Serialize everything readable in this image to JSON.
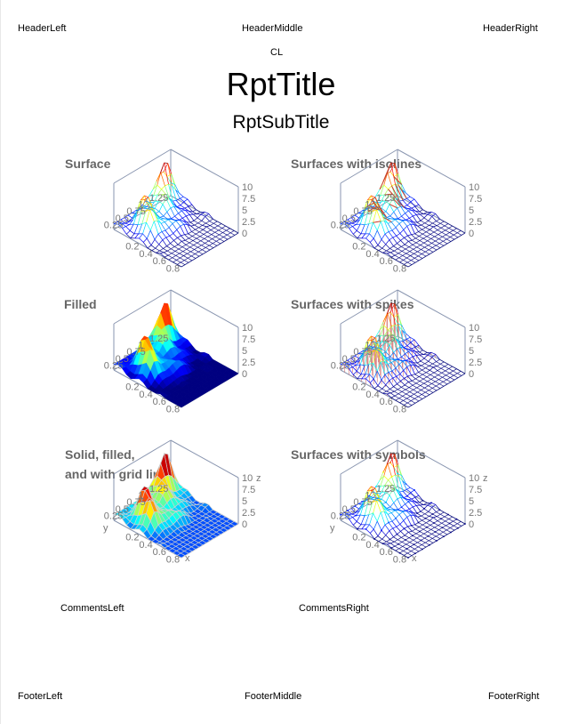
{
  "header": {
    "left": "HeaderLeft",
    "middle": "HeaderMiddle",
    "right": "HeaderRight"
  },
  "center_label": "CL",
  "report": {
    "title": "RptTitle",
    "subtitle": "RptSubTitle"
  },
  "comments": {
    "left": "CommentsLeft",
    "right": "CommentsRight"
  },
  "footer": {
    "left": "FooterLeft",
    "middle": "FooterMiddle",
    "right": "FooterRight"
  },
  "chart_data": [
    {
      "type": "surface",
      "title": "Surface",
      "style": "wireframe",
      "zlim": [
        0,
        10
      ],
      "z_ticks": [
        "0",
        "2.5",
        "5",
        "7.5",
        "10"
      ],
      "x_ticks": [
        "0.2",
        "0.4",
        "0.6",
        "0.8"
      ],
      "y_ticks": [
        "0.25",
        "0.5",
        "0.75",
        "1",
        "1.25"
      ]
    },
    {
      "type": "surface",
      "title": "Surfaces with isolines",
      "style": "wireframe-isolines",
      "zlim": [
        0,
        10
      ],
      "z_ticks": [
        "0",
        "2.5",
        "5",
        "7.5",
        "10"
      ],
      "x_ticks": [
        "0.2",
        "0.4",
        "0.6",
        "0.8"
      ],
      "y_ticks": [
        "0.25",
        "0.5",
        "0.75",
        "1",
        "1.25"
      ]
    },
    {
      "type": "surface",
      "title": "Filled",
      "style": "filled",
      "zlim": [
        0,
        10
      ],
      "z_ticks": [
        "0",
        "2.5",
        "5",
        "7.5",
        "10"
      ],
      "x_ticks": [
        "0.2",
        "0.4",
        "0.6",
        "0.8"
      ],
      "y_ticks": [
        "0.25",
        "0.5",
        "0.75",
        "1",
        "1.25"
      ]
    },
    {
      "type": "surface",
      "title": "Surfaces with spikes",
      "style": "wireframe-spikes",
      "zlim": [
        0,
        10
      ],
      "z_ticks": [
        "0",
        "2.5",
        "5",
        "7.5",
        "10"
      ],
      "x_ticks": [
        "0.2",
        "0.4",
        "0.6",
        "0.8"
      ],
      "y_ticks": [
        "0.25",
        "0.5",
        "0.75",
        "1",
        "1.25"
      ]
    },
    {
      "type": "surface",
      "title": "Solid, filled,\nand with grid lines",
      "style": "solid-grid",
      "zlim": [
        0,
        10
      ],
      "z_ticks": [
        "0",
        "2.5",
        "5",
        "7.5",
        "10"
      ],
      "x_ticks": [
        "0.2",
        "0.4",
        "0.6",
        "0.8"
      ],
      "y_ticks": [
        "0.25",
        "0.5",
        "0.75",
        "1",
        "1.25"
      ],
      "xlabel": "x",
      "ylabel": "y",
      "zlabel": "z"
    },
    {
      "type": "surface",
      "title": "Surfaces with symbols",
      "style": "wireframe-symbols",
      "zlim": [
        0,
        10
      ],
      "z_ticks": [
        "0",
        "2.5",
        "5",
        "7.5",
        "10"
      ],
      "x_ticks": [
        "0.2",
        "0.4",
        "0.6",
        "0.8"
      ],
      "y_ticks": [
        "0.25",
        "0.5",
        "0.75",
        "1",
        "1.25"
      ],
      "xlabel": "x",
      "ylabel": "y",
      "zlabel": "z"
    }
  ]
}
